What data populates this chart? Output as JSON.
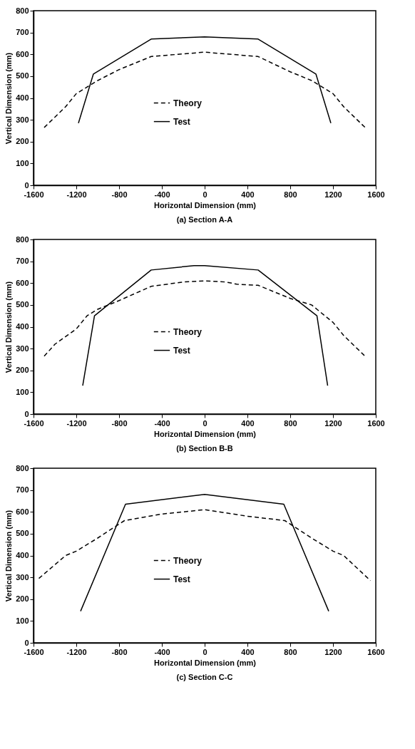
{
  "chart_data": [
    {
      "type": "line",
      "title": "(a) Section A-A",
      "xlabel": "Horizontal Dimension (mm)",
      "ylabel": "Vertical Dimension (mm)",
      "xlim": [
        -1600,
        1600
      ],
      "xticks": [
        -1600,
        -1200,
        -800,
        -400,
        0,
        400,
        800,
        1200,
        1600
      ],
      "ylim": [
        0,
        800
      ],
      "yticks": [
        0,
        100,
        200,
        300,
        400,
        500,
        600,
        700,
        800
      ],
      "legend": "center",
      "grid": false,
      "series": [
        {
          "name": "Theory",
          "color": "#000000",
          "line_style": "dashed",
          "x": [
            -1500,
            -1300,
            -1200,
            -1000,
            -800,
            -500,
            -250,
            0,
            250,
            500,
            800,
            1000,
            1200,
            1300,
            1500
          ],
          "values": [
            265,
            360,
            420,
            480,
            530,
            590,
            600,
            610,
            600,
            590,
            520,
            480,
            420,
            360,
            265
          ]
        },
        {
          "name": "Test",
          "color": "#000000",
          "line_style": "solid",
          "x": [
            -1180,
            -1040,
            -500,
            0,
            500,
            1040,
            1180
          ],
          "values": [
            285,
            510,
            670,
            680,
            670,
            510,
            285
          ]
        }
      ]
    },
    {
      "type": "line",
      "title": "(b) Section B-B",
      "xlabel": "Horizontal Dimension (mm)",
      "ylabel": "Vertical Dimension (mm)",
      "xlim": [
        -1600,
        1600
      ],
      "xticks": [
        -1600,
        -1200,
        -800,
        -400,
        0,
        400,
        800,
        1200,
        1600
      ],
      "ylim": [
        0,
        800
      ],
      "yticks": [
        0,
        100,
        200,
        300,
        400,
        500,
        600,
        700,
        800
      ],
      "legend": "center",
      "grid": false,
      "series": [
        {
          "name": "Theory",
          "color": "#000000",
          "line_style": "dashed",
          "x": [
            -1500,
            -1400,
            -1200,
            -1100,
            -1000,
            -800,
            -500,
            -200,
            0,
            200,
            300,
            500,
            800,
            1000,
            1050,
            1200,
            1300,
            1500
          ],
          "values": [
            265,
            320,
            390,
            450,
            480,
            520,
            585,
            605,
            610,
            605,
            595,
            590,
            530,
            500,
            480,
            420,
            360,
            265
          ]
        },
        {
          "name": "Test",
          "color": "#000000",
          "line_style": "solid",
          "x": [
            -1140,
            -1030,
            -500,
            -100,
            0,
            500,
            1050,
            1150
          ],
          "values": [
            130,
            450,
            660,
            680,
            680,
            660,
            450,
            130
          ]
        }
      ]
    },
    {
      "type": "line",
      "title": "(c) Section C-C",
      "xlabel": "Horizontal Dimension (mm)",
      "ylabel": "Vertical Dimension (mm)",
      "xlim": [
        -1600,
        1600
      ],
      "xticks": [
        -1600,
        -1200,
        -800,
        -400,
        0,
        400,
        800,
        1200,
        1600
      ],
      "ylim": [
        0,
        800
      ],
      "yticks": [
        0,
        100,
        200,
        300,
        400,
        500,
        600,
        700,
        800
      ],
      "legend": "center",
      "grid": false,
      "series": [
        {
          "name": "Theory",
          "color": "#000000",
          "line_style": "dashed",
          "x": [
            -1550,
            -1300,
            -1200,
            -1000,
            -750,
            -400,
            0,
            400,
            750,
            1000,
            1200,
            1300,
            1550
          ],
          "values": [
            295,
            400,
            420,
            480,
            560,
            590,
            610,
            580,
            560,
            480,
            420,
            400,
            285
          ]
        },
        {
          "name": "Test",
          "color": "#000000",
          "line_style": "solid",
          "x": [
            -1160,
            -740,
            0,
            740,
            1160
          ],
          "values": [
            145,
            635,
            680,
            635,
            145
          ]
        }
      ]
    }
  ]
}
